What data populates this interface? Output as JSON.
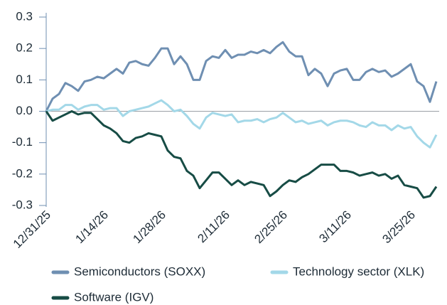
{
  "chart_data": {
    "type": "line",
    "categories": [
      "12/31/25",
      null,
      null,
      null,
      null,
      null,
      null,
      null,
      null,
      "1/14/26",
      null,
      null,
      null,
      null,
      null,
      null,
      null,
      null,
      "1/28/26",
      null,
      null,
      null,
      null,
      null,
      null,
      null,
      null,
      null,
      "2/11/26",
      null,
      null,
      null,
      null,
      null,
      null,
      null,
      null,
      "2/25/26",
      null,
      null,
      null,
      null,
      null,
      null,
      null,
      null,
      null,
      "3/11/26",
      null,
      null,
      null,
      null,
      null,
      null,
      null,
      null,
      null,
      "3/25/26",
      null,
      null,
      null,
      null
    ],
    "series": [
      {
        "name": "Semiconductors (SOXX)",
        "color": "#6f8fb2",
        "values": [
          0,
          0.04,
          0.055,
          0.09,
          0.08,
          0.065,
          0.095,
          0.1,
          0.11,
          0.105,
          0.12,
          0.135,
          0.12,
          0.155,
          0.16,
          0.15,
          0.145,
          0.17,
          0.2,
          0.2,
          0.15,
          0.175,
          0.15,
          0.1,
          0.1,
          0.16,
          0.175,
          0.17,
          0.195,
          0.17,
          0.18,
          0.18,
          0.19,
          0.185,
          0.195,
          0.185,
          0.205,
          0.22,
          0.19,
          0.175,
          0.175,
          0.115,
          0.135,
          0.12,
          0.08,
          0.12,
          0.13,
          0.135,
          0.1,
          0.1,
          0.125,
          0.135,
          0.125,
          0.13,
          0.11,
          0.12,
          0.135,
          0.15,
          0.095,
          0.08,
          0.03,
          0.095
        ]
      },
      {
        "name": "Technology sector (XLK)",
        "color": "#a3d8e8",
        "values": [
          0,
          0.005,
          0.005,
          0.02,
          0.02,
          0.005,
          0.015,
          0.02,
          0.02,
          0.005,
          0.01,
          0.01,
          -0.015,
          0,
          0.005,
          0.01,
          0.015,
          0.025,
          0.035,
          0.02,
          0,
          0.005,
          -0.015,
          -0.04,
          -0.055,
          -0.02,
          -0.005,
          -0.01,
          -0.015,
          -0.01,
          -0.035,
          -0.03,
          -0.03,
          -0.025,
          -0.035,
          -0.025,
          -0.02,
          -0.005,
          -0.02,
          -0.035,
          -0.03,
          -0.04,
          -0.035,
          -0.03,
          -0.045,
          -0.035,
          -0.03,
          -0.03,
          -0.035,
          -0.045,
          -0.05,
          -0.035,
          -0.045,
          -0.045,
          -0.06,
          -0.045,
          -0.055,
          -0.05,
          -0.08,
          -0.1,
          -0.115,
          -0.075
        ]
      },
      {
        "name": "Software (IGV)",
        "color": "#174c45",
        "values": [
          0,
          -0.03,
          -0.02,
          -0.01,
          0,
          -0.01,
          -0.005,
          -0.005,
          -0.025,
          -0.045,
          -0.055,
          -0.07,
          -0.095,
          -0.1,
          -0.085,
          -0.08,
          -0.07,
          -0.075,
          -0.08,
          -0.125,
          -0.145,
          -0.15,
          -0.19,
          -0.205,
          -0.245,
          -0.22,
          -0.195,
          -0.195,
          -0.215,
          -0.235,
          -0.22,
          -0.235,
          -0.225,
          -0.23,
          -0.235,
          -0.27,
          -0.255,
          -0.235,
          -0.22,
          -0.225,
          -0.21,
          -0.2,
          -0.185,
          -0.17,
          -0.17,
          -0.17,
          -0.19,
          -0.19,
          -0.195,
          -0.205,
          -0.2,
          -0.195,
          -0.205,
          -0.2,
          -0.215,
          -0.205,
          -0.235,
          -0.24,
          -0.245,
          -0.275,
          -0.27,
          -0.24
        ]
      }
    ],
    "ylim": [
      -0.3,
      0.3
    ],
    "yticks": [
      0.3,
      0.2,
      0.1,
      {
        "value": 0,
        "label": "0.0"
      },
      -0.1,
      -0.2,
      -0.3
    ],
    "legend": "bottom"
  }
}
